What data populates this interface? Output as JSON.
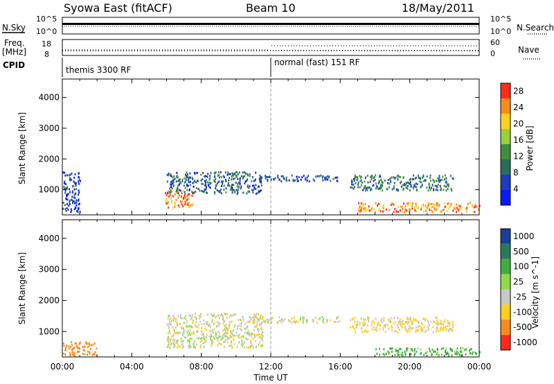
{
  "header": {
    "title": "Syowa East (fitACF)",
    "beam": "Beam 10",
    "date": "18/May/2011"
  },
  "summary_panels": {
    "nsky_label": "N.Sky",
    "nsky_ticks": [
      "10^5",
      "10^0"
    ],
    "nsearch_label": "N.Search",
    "nsearch_ticks": [
      "10^5",
      "10^0"
    ],
    "freq_label": "Freq.",
    "freq_unit": "[MHz]",
    "freq_ticks": [
      "18",
      "8"
    ],
    "nave_label": "Nave",
    "nave_ticks": [
      "60",
      "0"
    ],
    "cpid_label": "CPID",
    "cpid_modes": [
      {
        "label": "themis 3300 RF",
        "start": "00:00",
        "end": "12:00"
      },
      {
        "label": "normal (fast) 151 RF",
        "start": "12:00",
        "end": "24:00"
      }
    ]
  },
  "chart_data": [
    {
      "type": "heatmap",
      "title": "",
      "xlabel": "Time UT",
      "ylabel": "Slant Range [km]",
      "x_ticks": [
        "00:00",
        "04:00",
        "08:00",
        "12:00",
        "16:00",
        "20:00",
        "00:00"
      ],
      "xlim_hours": [
        0,
        24
      ],
      "y_ticks": [
        1000,
        2000,
        3000,
        4000
      ],
      "ylim": [
        180,
        4600
      ],
      "colorbar": {
        "label": "Power [dB]",
        "ticks": [
          4,
          8,
          12,
          16,
          20,
          24,
          28
        ],
        "range": [
          0,
          30
        ],
        "colors": [
          "#0a1aff",
          "#1e3cbe",
          "#2a6e5a",
          "#3f8f3f",
          "#9ccf3a",
          "#ffd21a",
          "#ff8a1a",
          "#ff2a1a"
        ]
      },
      "echo_regions": [
        {
          "t0": 0.0,
          "t1": 1.0,
          "r0": 300,
          "r1": 1600,
          "value": 5
        },
        {
          "t0": 5.9,
          "t1": 7.5,
          "r0": 400,
          "r1": 1000,
          "value": 24
        },
        {
          "t0": 6.0,
          "t1": 11.5,
          "r0": 900,
          "r1": 1600,
          "value": 8
        },
        {
          "t0": 11.0,
          "t1": 16.0,
          "r0": 1300,
          "r1": 1500,
          "value": 6
        },
        {
          "t0": 16.5,
          "t1": 22.5,
          "r0": 1000,
          "r1": 1500,
          "value": 10
        },
        {
          "t0": 17.0,
          "t1": 24.0,
          "r0": 300,
          "r1": 600,
          "value": 24
        }
      ]
    },
    {
      "type": "heatmap",
      "title": "",
      "xlabel": "Time UT",
      "ylabel": "Slant Range [km]",
      "x_ticks": [
        "00:00",
        "04:00",
        "08:00",
        "12:00",
        "16:00",
        "20:00",
        "00:00"
      ],
      "xlim_hours": [
        0,
        24
      ],
      "y_ticks": [
        1000,
        2000,
        3000,
        4000
      ],
      "ylim": [
        180,
        4600
      ],
      "colorbar": {
        "label": "Velocity [m s^-1]",
        "ticks": [
          "1000",
          "500",
          "100",
          "25",
          "-25",
          "-100",
          "-500",
          "-1000"
        ],
        "colors": [
          "#1a3f9a",
          "#2a7a5a",
          "#3fae3f",
          "#8fdc4a",
          "#c8c8c8",
          "#ffd01a",
          "#ff8a1a",
          "#ff2a1a"
        ]
      },
      "echo_regions": [
        {
          "t0": 0.0,
          "t1": 2.0,
          "r0": 250,
          "r1": 700,
          "value": -300
        },
        {
          "t0": 6.0,
          "t1": 11.5,
          "r0": 500,
          "r1": 1600,
          "value": 0
        },
        {
          "t0": 11.0,
          "t1": 16.0,
          "r0": 1300,
          "r1": 1500,
          "value": 0
        },
        {
          "t0": 16.5,
          "t1": 22.5,
          "r0": 1000,
          "r1": 1500,
          "value": -40
        },
        {
          "t0": 18.0,
          "t1": 24.0,
          "r0": 250,
          "r1": 500,
          "value": 150
        }
      ]
    }
  ]
}
